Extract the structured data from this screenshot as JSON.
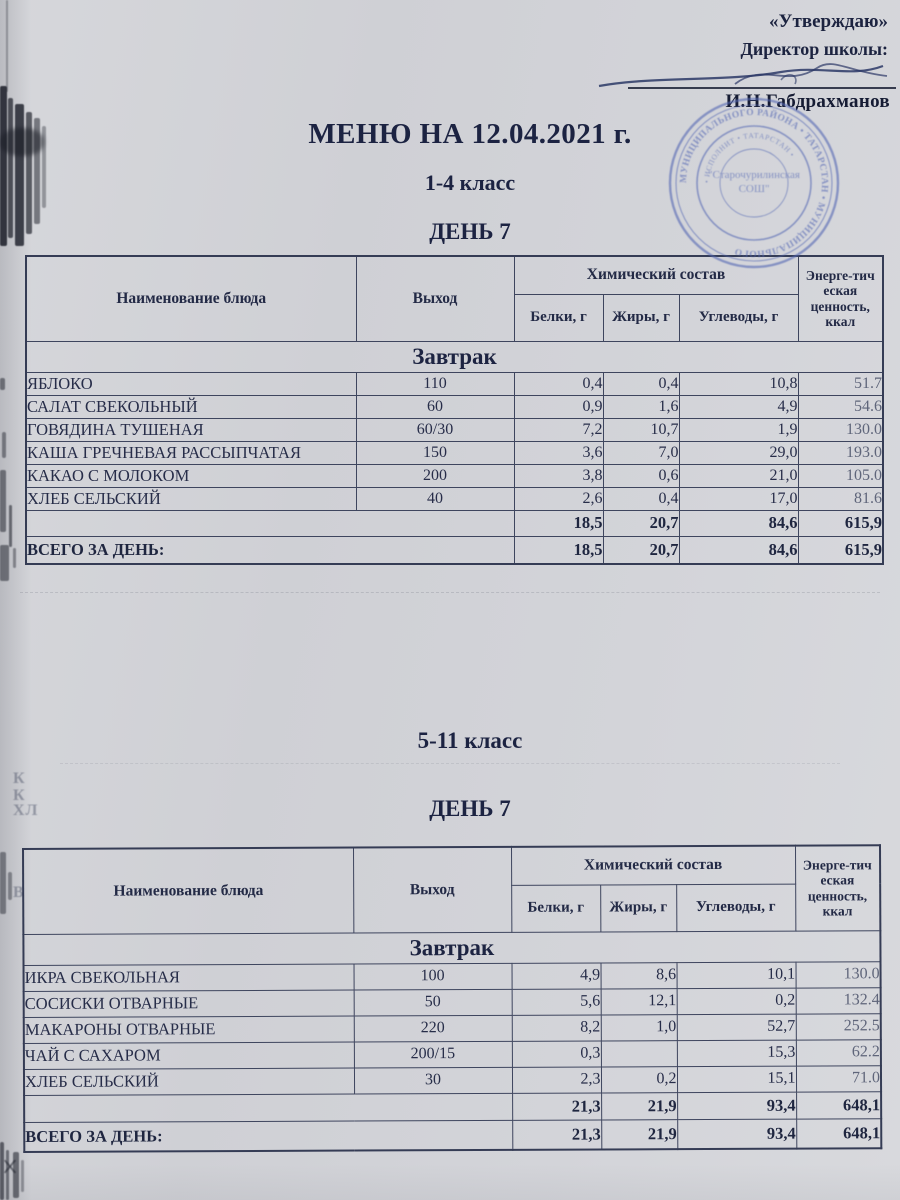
{
  "approval": {
    "quote": "«Утверждаю»",
    "role": "Директор школы:",
    "name": "И.Н.Габдрахманов"
  },
  "stamp": {
    "center_line1": "\"Старочурилинская",
    "center_line2": "СОШ\"",
    "ring_outer_text": "МУНИЦИПАЛЬНОГО РАЙОНА • ТАТАРСТАН • МУНИЦИПАЛЬНОГО",
    "ring_inner_text": "• ИСПОЛНИТ • ТАТАРСТАН •",
    "ink_color": "#5266b3"
  },
  "titles": {
    "menu": "МЕНЮ НА 12.04.2021 г.",
    "grade1": "1-4 класс",
    "day1": "ДЕНЬ 7",
    "grade2": "5-11 класс",
    "day2": "ДЕНЬ 7"
  },
  "table_headers": {
    "dish": "Наименование блюда",
    "output": "Выход",
    "chemical": "Химический состав",
    "protein": "Белки, г",
    "fat": "Жиры, г",
    "carbs": "Углеводы, г",
    "energy": "Энерге-тич\nеская\nценность,\nккал",
    "meal": "Завтрак",
    "total_label": "ВСЕГО ЗА ДЕНЬ:"
  },
  "table1": {
    "rows": [
      [
        "ЯБЛОКО",
        "110",
        "0,4",
        "0,4",
        "10,8",
        "51.7"
      ],
      [
        "САЛАТ СВЕКОЛЬНЫЙ",
        "60",
        "0,9",
        "1,6",
        "4,9",
        "54.6"
      ],
      [
        "ГОВЯДИНА ТУШЕНАЯ",
        "60/30",
        "7,2",
        "10,7",
        "1,9",
        "130.0"
      ],
      [
        "КАША ГРЕЧНЕВАЯ РАССЫПЧАТАЯ",
        "150",
        "3,6",
        "7,0",
        "29,0",
        "193.0"
      ],
      [
        "КАКАО С МОЛОКОМ",
        "200",
        "3,8",
        "0,6",
        "21,0",
        "105.0"
      ],
      [
        "ХЛЕБ СЕЛЬСКИЙ",
        "40",
        "2,6",
        "0,4",
        "17,0",
        "81.6"
      ]
    ],
    "subtotal": [
      "18,5",
      "20,7",
      "84,6",
      "615,9"
    ],
    "total": [
      "18,5",
      "20,7",
      "84,6",
      "615,9"
    ]
  },
  "table2": {
    "rows": [
      [
        "ИКРА СВЕКОЛЬНАЯ",
        "100",
        "4,9",
        "8,6",
        "10,1",
        "130.0"
      ],
      [
        "СОСИСКИ ОТВАРНЫЕ",
        "50",
        "5,6",
        "12,1",
        "0,2",
        "132.4"
      ],
      [
        "МАКАРОНЫ ОТВАРНЫЕ",
        "220",
        "8,2",
        "1,0",
        "52,7",
        "252.5"
      ],
      [
        "ЧАЙ С САХАРОМ",
        "200/15",
        "0,3",
        "",
        "15,3",
        "62.2"
      ],
      [
        "ХЛЕБ СЕЛЬСКИЙ",
        "30",
        "2,3",
        "0,2",
        "15,1",
        "71.0"
      ]
    ],
    "subtotal": [
      "21,3",
      "21,9",
      "93,4",
      "648,1"
    ],
    "total": [
      "21,3",
      "21,9",
      "93,4",
      "648,1"
    ]
  },
  "artifacts": {
    "ghost_lines": [
      "К",
      "К",
      "ХЛ",
      "В"
    ]
  }
}
